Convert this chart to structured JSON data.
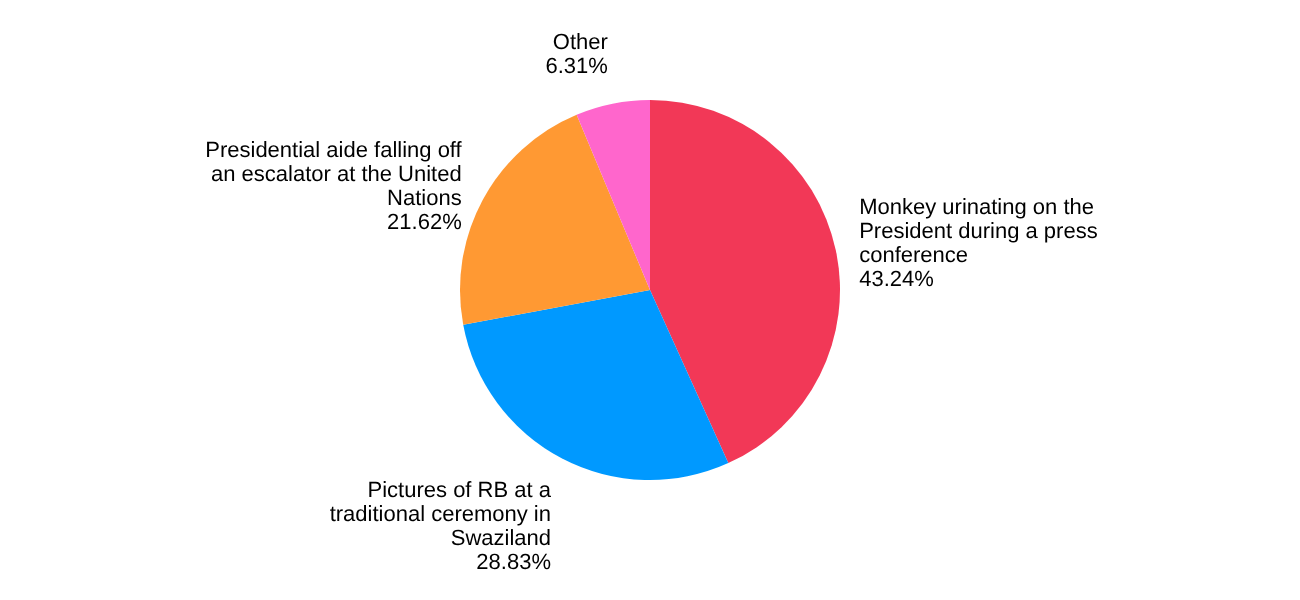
{
  "chart_data": {
    "type": "pie",
    "categories": [
      "Monkey urinating on the President during a press conference",
      "Pictures of RB at a traditional ceremony in Swaziland",
      "Presidential aide falling off an escalator at the United Nations",
      "Other"
    ],
    "values": [
      43.24,
      28.83,
      21.62,
      6.31
    ],
    "value_labels": [
      "43.24%",
      "28.83%",
      "21.62%",
      "6.31%"
    ],
    "colors": [
      "#f23857",
      "#0099ff",
      "#ff9933",
      "#ff66cc"
    ],
    "legend": false
  }
}
